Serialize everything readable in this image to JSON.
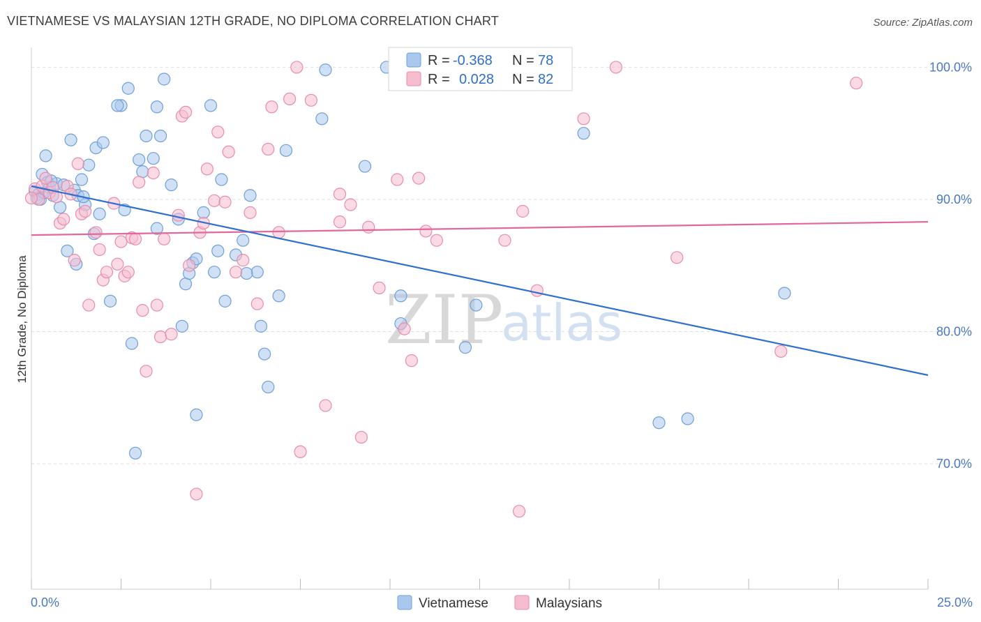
{
  "header": {
    "title": "VIETNAMESE VS MALAYSIAN 12TH GRADE, NO DIPLOMA CORRELATION CHART",
    "source": "Source: ZipAtlas.com"
  },
  "watermark": {
    "zip": "ZIP",
    "atlas": "atlas"
  },
  "legend_box": {
    "rows": [
      {
        "r_label": "R =",
        "r_value": "-0.368",
        "n_label": "N =",
        "n_value": "78"
      },
      {
        "r_label": "R =",
        "r_value": "0.028",
        "n_label": "N =",
        "n_value": "82"
      }
    ]
  },
  "colors": {
    "vietnamese_fill": "#aac8ee",
    "vietnamese_stroke": "#6f9fd8",
    "vietnamese_line": "#2f6fce",
    "malaysian_fill": "#f6bdd0",
    "malaysian_stroke": "#e98bab",
    "malaysian_line": "#e2679a",
    "tick_label": "#4a78c2"
  },
  "chart_data": {
    "type": "scatter",
    "title": "VIETNAMESE VS MALAYSIAN 12TH GRADE, NO DIPLOMA CORRELATION CHART",
    "xlabel": "",
    "ylabel": "12th Grade, No Diploma",
    "xlim": [
      0,
      25
    ],
    "ylim": [
      60.5,
      101.5
    ],
    "x_tick_labels": [
      "0.0%",
      "25.0%"
    ],
    "y_tick_labels": [
      "100.0%",
      "90.0%",
      "80.0%",
      "70.0%"
    ],
    "y_ticks": [
      100,
      90,
      80,
      70
    ],
    "grid": "horizontal dashed",
    "legend_position": "top-center and bottom",
    "series": [
      {
        "name": "Vietnamese",
        "R": -0.368,
        "N": 78,
        "trend": {
          "x": [
            0,
            25
          ],
          "y": [
            91.0,
            76.7
          ]
        },
        "points": [
          [
            0.1,
            90.6
          ],
          [
            0.15,
            90.1
          ],
          [
            0.2,
            90.4
          ],
          [
            0.25,
            90.0
          ],
          [
            0.3,
            91.9
          ],
          [
            0.4,
            93.3
          ],
          [
            0.45,
            91.3
          ],
          [
            0.5,
            90.9
          ],
          [
            0.6,
            90.3
          ],
          [
            0.7,
            91.2
          ],
          [
            0.8,
            89.4
          ],
          [
            0.9,
            91.1
          ],
          [
            1.0,
            86.1
          ],
          [
            1.1,
            94.5
          ],
          [
            1.2,
            90.7
          ],
          [
            1.3,
            90.3
          ],
          [
            1.4,
            91.5
          ],
          [
            1.5,
            89.6
          ],
          [
            1.6,
            92.6
          ],
          [
            1.75,
            87.4
          ],
          [
            1.8,
            93.9
          ],
          [
            1.9,
            88.9
          ],
          [
            2.0,
            94.3
          ],
          [
            2.2,
            82.3
          ],
          [
            2.5,
            97.1
          ],
          [
            2.6,
            89.2
          ],
          [
            2.7,
            98.4
          ],
          [
            2.8,
            79.1
          ],
          [
            2.9,
            70.8
          ],
          [
            3.0,
            93.0
          ],
          [
            3.1,
            92.1
          ],
          [
            3.2,
            94.8
          ],
          [
            3.4,
            93.1
          ],
          [
            3.5,
            97.0
          ],
          [
            3.6,
            94.8
          ],
          [
            3.7,
            99.1
          ],
          [
            3.9,
            91.1
          ],
          [
            4.1,
            88.5
          ],
          [
            4.2,
            80.4
          ],
          [
            4.3,
            83.6
          ],
          [
            4.4,
            84.4
          ],
          [
            4.5,
            85.2
          ],
          [
            4.6,
            73.7
          ],
          [
            4.8,
            89.0
          ],
          [
            5.0,
            97.1
          ],
          [
            5.1,
            84.5
          ],
          [
            5.2,
            86.1
          ],
          [
            5.3,
            91.5
          ],
          [
            5.4,
            82.3
          ],
          [
            5.7,
            85.8
          ],
          [
            5.9,
            86.9
          ],
          [
            6.1,
            90.3
          ],
          [
            6.3,
            84.5
          ],
          [
            6.4,
            80.4
          ],
          [
            6.5,
            78.3
          ],
          [
            6.6,
            75.8
          ],
          [
            6.9,
            82.7
          ],
          [
            7.1,
            93.7
          ],
          [
            8.1,
            96.1
          ],
          [
            8.2,
            99.8
          ],
          [
            9.3,
            92.5
          ],
          [
            9.9,
            100.0
          ],
          [
            10.3,
            80.6
          ],
          [
            10.3,
            82.7
          ],
          [
            12.1,
            78.8
          ],
          [
            12.4,
            82.0
          ],
          [
            15.4,
            95.0
          ],
          [
            17.5,
            73.1
          ],
          [
            18.3,
            73.4
          ],
          [
            21.0,
            82.9
          ],
          [
            0.35,
            90.5
          ],
          [
            1.25,
            85.1
          ],
          [
            2.4,
            97.1
          ],
          [
            3.5,
            87.8
          ],
          [
            4.6,
            85.5
          ],
          [
            6.0,
            84.4
          ],
          [
            0.55,
            91.4
          ],
          [
            1.45,
            90.2
          ]
        ]
      },
      {
        "name": "Malaysians",
        "R": 0.028,
        "N": 82,
        "trend": {
          "x": [
            0,
            25
          ],
          "y": [
            87.3,
            88.3
          ]
        },
        "points": [
          [
            0.1,
            90.8
          ],
          [
            0.2,
            90.0
          ],
          [
            0.3,
            91.0
          ],
          [
            0.4,
            91.6
          ],
          [
            0.5,
            90.5
          ],
          [
            0.6,
            90.9
          ],
          [
            0.7,
            90.2
          ],
          [
            0.8,
            88.2
          ],
          [
            0.9,
            88.5
          ],
          [
            1.0,
            91.0
          ],
          [
            1.1,
            90.4
          ],
          [
            1.2,
            85.4
          ],
          [
            1.3,
            92.7
          ],
          [
            1.4,
            88.9
          ],
          [
            1.5,
            89.1
          ],
          [
            1.6,
            82.0
          ],
          [
            1.8,
            87.5
          ],
          [
            1.9,
            86.2
          ],
          [
            2.0,
            83.9
          ],
          [
            2.1,
            84.5
          ],
          [
            2.3,
            89.7
          ],
          [
            2.4,
            85.1
          ],
          [
            2.5,
            86.8
          ],
          [
            2.6,
            84.2
          ],
          [
            2.7,
            84.5
          ],
          [
            2.8,
            87.1
          ],
          [
            2.9,
            87.0
          ],
          [
            3.0,
            91.3
          ],
          [
            3.1,
            81.6
          ],
          [
            3.2,
            77.0
          ],
          [
            3.4,
            92.0
          ],
          [
            3.5,
            82.0
          ],
          [
            3.6,
            79.6
          ],
          [
            3.7,
            87.0
          ],
          [
            3.9,
            79.8
          ],
          [
            4.1,
            88.8
          ],
          [
            4.2,
            96.3
          ],
          [
            4.3,
            96.6
          ],
          [
            4.4,
            85.0
          ],
          [
            4.6,
            67.7
          ],
          [
            4.7,
            87.5
          ],
          [
            4.8,
            88.2
          ],
          [
            4.9,
            92.3
          ],
          [
            5.1,
            89.9
          ],
          [
            5.2,
            95.1
          ],
          [
            5.4,
            89.8
          ],
          [
            5.5,
            93.6
          ],
          [
            5.7,
            84.5
          ],
          [
            5.9,
            85.4
          ],
          [
            6.1,
            89.0
          ],
          [
            6.3,
            82.1
          ],
          [
            6.6,
            93.8
          ],
          [
            6.7,
            97.0
          ],
          [
            6.9,
            87.5
          ],
          [
            7.2,
            97.6
          ],
          [
            7.4,
            100.0
          ],
          [
            7.5,
            70.9
          ],
          [
            7.8,
            97.5
          ],
          [
            8.2,
            74.4
          ],
          [
            8.6,
            90.4
          ],
          [
            8.6,
            88.3
          ],
          [
            8.9,
            89.6
          ],
          [
            9.2,
            72.0
          ],
          [
            9.4,
            87.9
          ],
          [
            9.7,
            83.3
          ],
          [
            10.2,
            91.5
          ],
          [
            10.4,
            80.2
          ],
          [
            10.6,
            77.8
          ],
          [
            10.8,
            91.6
          ],
          [
            11.0,
            87.6
          ],
          [
            11.3,
            86.9
          ],
          [
            11.5,
            100.0
          ],
          [
            13.2,
            86.9
          ],
          [
            13.6,
            66.4
          ],
          [
            13.7,
            89.1
          ],
          [
            14.1,
            83.1
          ],
          [
            15.4,
            96.1
          ],
          [
            16.3,
            100.0
          ],
          [
            18.0,
            85.6
          ],
          [
            20.9,
            78.5
          ],
          [
            23.0,
            98.8
          ],
          [
            0.0,
            90.1
          ]
        ]
      }
    ]
  },
  "bottom_legend": {
    "items": [
      "Vietnamese",
      "Malaysians"
    ]
  }
}
